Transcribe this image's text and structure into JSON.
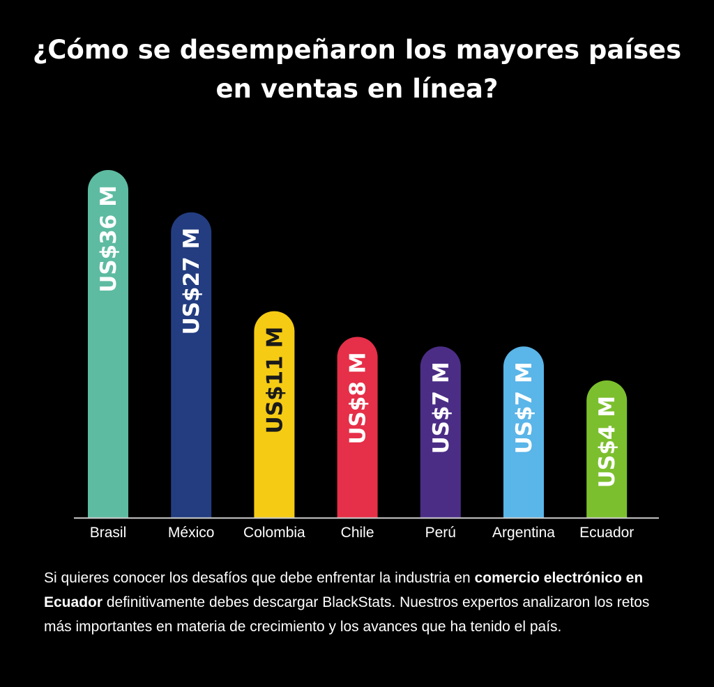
{
  "title": "¿Cómo se desempeñaron los mayores países en ventas en línea?",
  "chart_data": {
    "type": "bar",
    "title": "¿Cómo se desempeñaron los mayores países en ventas en línea?",
    "categories": [
      "Brasil",
      "México",
      "Colombia",
      "Chile",
      "Perú",
      "Argentina",
      "Ecuador"
    ],
    "values": [
      36,
      27,
      11,
      8,
      7,
      7,
      4
    ],
    "data_labels": [
      "US$36 M",
      "US$27 M",
      "US$11 M",
      "US$8 M",
      "US$7 M",
      "US$7 M",
      "US$4 M"
    ],
    "unit": "US$ M",
    "bar_colors": [
      "#5dbba1",
      "#233d80",
      "#f5cb14",
      "#e62f48",
      "#4b2d86",
      "#5ab5e8",
      "#7cbf2e"
    ],
    "label_colors": [
      "#ffffff",
      "#ffffff",
      "#1a1a1a",
      "#ffffff",
      "#ffffff",
      "#ffffff",
      "#ffffff"
    ],
    "xlabel": "",
    "ylabel": "",
    "grid": false,
    "legend": "none"
  },
  "paragraph": {
    "part1": "Si quieres conocer los desafíos que debe enfrentar la industria en ",
    "bold1": "comercio electrónico en Ecuador",
    "part2": " definitivamente debes descargar BlackStats. Nuestros expertos analizaron los retos más importantes en materia de crecimiento y los avances que ha tenido el país."
  },
  "colors": {
    "background": "#000000",
    "text": "#ffffff",
    "axis": "#cfcfcf"
  }
}
